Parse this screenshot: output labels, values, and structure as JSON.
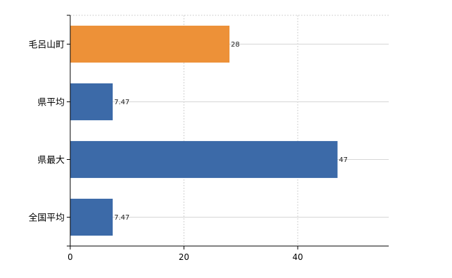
{
  "chart_data": {
    "type": "bar",
    "orientation": "horizontal",
    "categories": [
      "毛呂山町",
      "県平均",
      "県最大",
      "全国平均"
    ],
    "values": [
      28,
      7.47,
      47,
      7.47
    ],
    "data_labels": [
      "28",
      "7.47",
      "47",
      "7.47"
    ],
    "bar_colors": [
      "#ed9138",
      "#3c6aa8",
      "#3c6aa8",
      "#3c6aa8"
    ],
    "xlim": [
      0,
      56
    ],
    "x_ticks": [
      0,
      20,
      40
    ],
    "x_tick_labels": [
      "0",
      "20",
      "40"
    ],
    "grid": true,
    "title": "",
    "xlabel": "",
    "ylabel": ""
  }
}
